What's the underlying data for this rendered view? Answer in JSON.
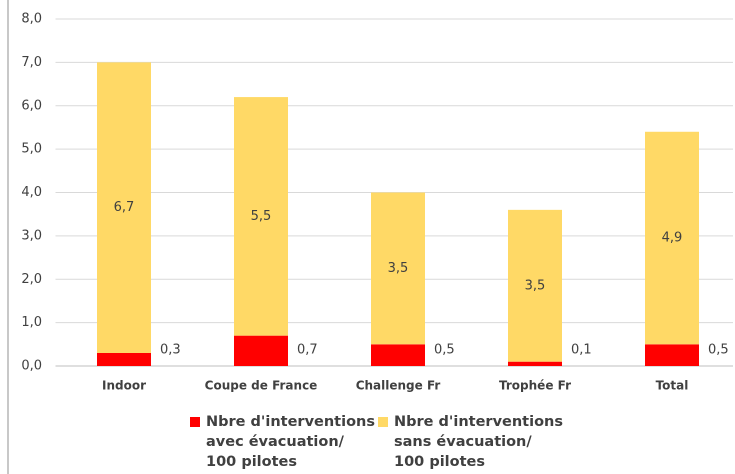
{
  "chart_data": {
    "type": "stacked_bar",
    "categories": [
      "Indoor",
      "Coupe de France",
      "Challenge Fr",
      "Trophée Fr",
      "Total"
    ],
    "series": [
      {
        "name": "Nbre d'interventions avec évacuation/ 100 pilotes",
        "color": "#ff0000",
        "values": [
          0.3,
          0.7,
          0.5,
          0.1,
          0.5
        ],
        "value_labels": [
          "0,3",
          "0,7",
          "0,5",
          "0,1",
          "0,5"
        ]
      },
      {
        "name": "Nbre d'interventions sans évacuation/ 100 pilotes",
        "color": "#ffd966",
        "values": [
          6.7,
          5.5,
          3.5,
          3.5,
          4.9
        ],
        "value_labels": [
          "6,7",
          "5,5",
          "3,5",
          "3,5",
          "4,9"
        ]
      }
    ],
    "ylim": [
      0,
      8
    ],
    "yticks": [
      {
        "value": 0,
        "label": "0,0"
      },
      {
        "value": 1,
        "label": "1,0"
      },
      {
        "value": 2,
        "label": "2,0"
      },
      {
        "value": 3,
        "label": "3,0"
      },
      {
        "value": 4,
        "label": "4,0"
      },
      {
        "value": 5,
        "label": "5,0"
      },
      {
        "value": 6,
        "label": "6,0"
      },
      {
        "value": 7,
        "label": "7,0"
      },
      {
        "value": 8,
        "label": "8,0"
      }
    ],
    "grid": true,
    "legend": "bottom"
  }
}
